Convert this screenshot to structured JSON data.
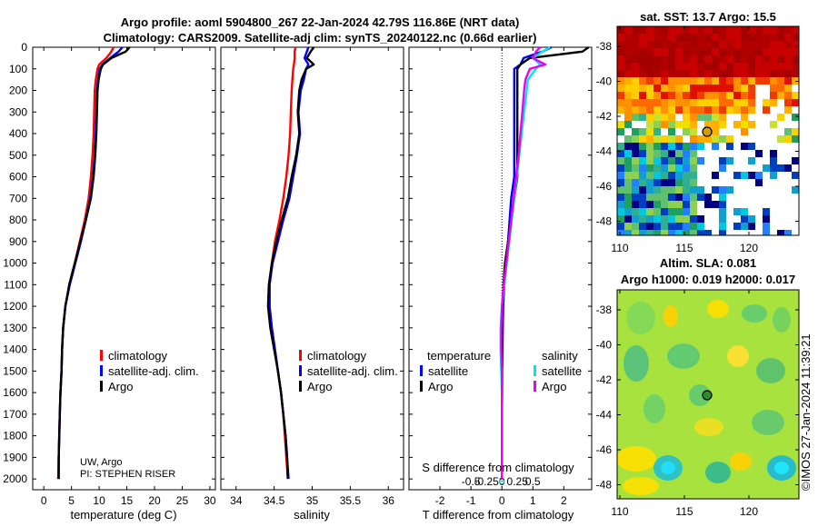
{
  "header": {
    "line1": "Argo profile: aoml 5904800_267 22-Jan-2024 42.79S 116.86E (NRT data)",
    "line2": "Climatology: CARS2009. Satellite-adj clim: synTS_20240122.nc (0.66d earlier)"
  },
  "depth_ticks": [
    0,
    100,
    200,
    300,
    400,
    500,
    600,
    700,
    800,
    900,
    1000,
    1100,
    1200,
    1300,
    1400,
    1500,
    1600,
    1700,
    1800,
    1900,
    2000
  ],
  "credit": {
    "line1": "UW, Argo",
    "line2": "PI: STEPHEN RISER"
  },
  "legend_panel1": [
    "climatology",
    "satellite-adj. clim.",
    "Argo"
  ],
  "legend_panel2": [
    "climatology",
    "satellite-adj. clim.",
    "Argo"
  ],
  "legend_panel3": {
    "temp_title": "temperature",
    "sal_title": "salinity",
    "temp_items": [
      "satellite",
      "Argo"
    ],
    "sal_items": [
      "satellite",
      "Argo"
    ]
  },
  "map1": {
    "title": "sat. SST: 13.7 Argo: 15.5"
  },
  "map2": {
    "title1": "Altim. SLA: 0.081",
    "title2": "Argo h1000: 0.019 h2000: 0.017"
  },
  "map_lat_ticks": [
    "-38",
    "-40",
    "-42",
    "-44",
    "-46",
    "-48"
  ],
  "map_lon_ticks": [
    "110",
    "115",
    "120"
  ],
  "watermark": "©IMOS 27-Jan-2024 11:39:21",
  "colors": {
    "climatology": "#ff0000",
    "sat_clim": "#0000ff",
    "argo": "#000000",
    "temp_sat": "#0000ff",
    "sal_sat": "#00e5ee",
    "sal_argo": "#ee00ee"
  },
  "chart_data": [
    {
      "type": "line",
      "name": "temperature",
      "xlabel": "temperature (deg C)",
      "ylabel": "depth",
      "xlim": [
        -2,
        31
      ],
      "ylim": [
        2050,
        0
      ],
      "xticks": [
        0,
        5,
        10,
        15,
        20,
        25,
        30
      ],
      "depth": [
        0,
        20,
        50,
        80,
        100,
        150,
        200,
        300,
        400,
        500,
        600,
        700,
        800,
        900,
        1000,
        1100,
        1200,
        1300,
        1400,
        1500,
        1600,
        1700,
        1800,
        1900,
        2000
      ],
      "series": [
        {
          "name": "climatology",
          "values": [
            12.6,
            12.2,
            11.3,
            10.0,
            9.7,
            9.4,
            9.2,
            9.1,
            9.0,
            8.8,
            8.5,
            8.1,
            7.4,
            6.5,
            5.6,
            4.6,
            3.9,
            3.5,
            3.3,
            3.2,
            3.0,
            2.9,
            2.8,
            2.7,
            2.6
          ]
        },
        {
          "name": "satellite-adj. clim.",
          "values": [
            14.2,
            13.5,
            12.0,
            10.6,
            10.1,
            9.8,
            9.6,
            9.5,
            9.4,
            9.2,
            8.9,
            8.4,
            7.6,
            6.7,
            5.7,
            4.7,
            3.9,
            3.5,
            3.3,
            3.2,
            3.0,
            2.9,
            2.8,
            2.7,
            2.7
          ]
        },
        {
          "name": "Argo",
          "values": [
            15.5,
            14.8,
            12.2,
            10.7,
            10.3,
            9.9,
            9.7,
            9.6,
            9.5,
            9.3,
            9.0,
            8.5,
            7.6,
            6.6,
            5.6,
            4.6,
            3.9,
            3.5,
            3.3,
            3.2,
            3.0,
            2.9,
            2.8,
            2.7,
            2.7
          ]
        }
      ]
    },
    {
      "type": "line",
      "name": "salinity",
      "xlabel": "salinity",
      "ylabel": "depth",
      "xlim": [
        33.8,
        36.2
      ],
      "ylim": [
        2050,
        0
      ],
      "xticks": [
        34,
        34.5,
        35,
        35.5,
        36
      ],
      "depth": [
        0,
        20,
        50,
        80,
        100,
        150,
        200,
        300,
        400,
        500,
        600,
        700,
        800,
        900,
        1000,
        1100,
        1200,
        1300,
        1400,
        1500,
        1600,
        1700,
        1800,
        1900,
        2000
      ],
      "series": [
        {
          "name": "climatology",
          "values": [
            34.78,
            34.77,
            34.77,
            34.76,
            34.75,
            34.74,
            34.73,
            34.72,
            34.71,
            34.69,
            34.66,
            34.62,
            34.57,
            34.51,
            34.47,
            34.44,
            34.44,
            34.47,
            34.51,
            34.55,
            34.59,
            34.62,
            34.64,
            34.66,
            34.68
          ]
        },
        {
          "name": "satellite-adj. clim.",
          "values": [
            34.95,
            34.93,
            34.9,
            34.95,
            34.92,
            34.89,
            34.85,
            34.82,
            34.84,
            34.8,
            34.75,
            34.7,
            34.62,
            34.55,
            34.48,
            34.44,
            34.44,
            34.47,
            34.51,
            34.55,
            34.59,
            34.62,
            34.65,
            34.67,
            34.69
          ]
        },
        {
          "name": "Argo",
          "values": [
            35.02,
            34.98,
            34.93,
            35.02,
            34.92,
            34.86,
            34.83,
            34.81,
            34.83,
            34.79,
            34.73,
            34.68,
            34.6,
            34.53,
            34.47,
            34.43,
            34.42,
            34.45,
            34.5,
            34.55,
            34.59,
            34.62,
            34.65,
            34.67,
            34.68
          ]
        }
      ]
    },
    {
      "type": "line",
      "name": "difference from climatology",
      "xlabel": "T difference from climatology",
      "top_label": "S difference from climatology",
      "xlim": [
        -3.0,
        2.9
      ],
      "ylim": [
        2050,
        0
      ],
      "xticks": [
        -2,
        -1,
        0,
        1,
        2
      ],
      "s_ticks": [
        "-0.5",
        "-0.25",
        "0",
        "0.25",
        "0.5"
      ],
      "depth": [
        0,
        20,
        50,
        80,
        100,
        150,
        200,
        300,
        400,
        500,
        600,
        700,
        800,
        900,
        1000,
        1100,
        1200,
        1300,
        1400,
        1500,
        1600,
        1700,
        1800,
        1900,
        2000
      ],
      "series": [
        {
          "name": "temperature satellite",
          "values": [
            1.6,
            1.3,
            0.7,
            0.6,
            0.4,
            0.4,
            0.4,
            0.4,
            0.4,
            0.4,
            0.4,
            0.3,
            0.25,
            0.2,
            0.15,
            0.08,
            0.04,
            0.03,
            0.02,
            0.01,
            0.01,
            0.0,
            0.0,
            0.0,
            0.0
          ]
        },
        {
          "name": "temperature Argo",
          "values": [
            2.8,
            2.6,
            0.9,
            0.6,
            0.5,
            0.5,
            0.5,
            0.5,
            0.5,
            0.5,
            0.5,
            0.4,
            0.3,
            0.2,
            0.1,
            0.05,
            0.02,
            0.01,
            0.01,
            0.0,
            0.0,
            0.0,
            0.0,
            0.0,
            0.0
          ]
        },
        {
          "name": "salinity satellite",
          "values": [
            0.78,
            0.65,
            0.5,
            0.62,
            0.55,
            0.42,
            0.4,
            0.36,
            0.32,
            0.28,
            0.24,
            0.2,
            0.16,
            0.12,
            0.08,
            0.04,
            0.0,
            -0.02,
            -0.02,
            -0.01,
            0.0,
            0.0,
            0.0,
            0.0,
            0.0
          ]
        },
        {
          "name": "salinity Argo",
          "values": [
            0.62,
            0.55,
            0.5,
            0.7,
            0.45,
            0.38,
            0.36,
            0.33,
            0.3,
            0.27,
            0.23,
            0.19,
            0.15,
            0.11,
            0.07,
            0.03,
            0.0,
            -0.01,
            -0.01,
            0.0,
            0.0,
            0.0,
            0.0,
            0.0,
            0.0
          ]
        }
      ]
    }
  ]
}
